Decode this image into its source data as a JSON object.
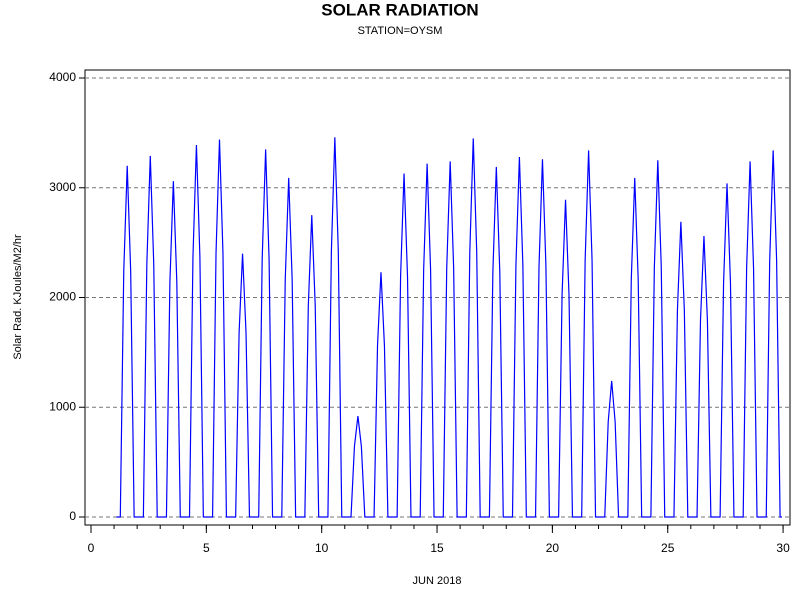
{
  "chart_data": {
    "type": "line",
    "title": "SOLAR RADIATION",
    "subtitle": "STATION=OYSM",
    "x_label": "JUN 2018",
    "y_label": "Solar Rad. KJoules/M2/hr",
    "xlim": [
      -0.26,
      30.3
    ],
    "ylim": [
      -73,
      4073
    ],
    "xticks": [
      0,
      5,
      10,
      15,
      20,
      25,
      30
    ],
    "xminor_ticks": [
      0,
      1,
      2,
      3,
      4,
      5,
      6,
      7,
      8,
      9,
      10,
      11,
      12,
      13,
      14,
      15,
      16,
      17,
      18,
      19,
      20,
      21,
      22,
      23,
      24,
      25,
      26,
      27,
      28,
      29,
      30
    ],
    "yticks": [
      0,
      1000,
      2000,
      3000,
      4000
    ],
    "grid": true,
    "series": [
      {
        "name": "Solar Rad.",
        "color": "#0000ff",
        "x": [
          1.1,
          1.27,
          1.42,
          1.57,
          1.72,
          1.87,
          2.27,
          2.42,
          2.57,
          2.72,
          2.87,
          3.27,
          3.42,
          3.57,
          3.72,
          3.87,
          4.27,
          4.42,
          4.57,
          4.72,
          4.87,
          5.27,
          5.42,
          5.57,
          5.72,
          5.87,
          6.27,
          6.42,
          6.57,
          6.72,
          6.87,
          7.27,
          7.42,
          7.57,
          7.72,
          7.87,
          8.27,
          8.42,
          8.57,
          8.72,
          8.87,
          9.27,
          9.42,
          9.57,
          9.72,
          9.87,
          10.27,
          10.42,
          10.57,
          10.72,
          10.87,
          11.27,
          11.42,
          11.57,
          11.72,
          11.87,
          12.27,
          12.42,
          12.57,
          12.72,
          12.87,
          13.27,
          13.42,
          13.57,
          13.72,
          13.87,
          14.27,
          14.42,
          14.57,
          14.72,
          14.87,
          15.27,
          15.42,
          15.57,
          15.72,
          15.87,
          16.27,
          16.42,
          16.57,
          16.72,
          16.87,
          17.27,
          17.42,
          17.57,
          17.72,
          17.87,
          18.27,
          18.42,
          18.57,
          18.72,
          18.87,
          19.27,
          19.42,
          19.57,
          19.72,
          19.87,
          20.27,
          20.42,
          20.57,
          20.72,
          20.87,
          21.27,
          21.42,
          21.57,
          21.72,
          21.87,
          22.27,
          22.42,
          22.57,
          22.72,
          22.87,
          23.27,
          23.42,
          23.57,
          23.72,
          23.87,
          24.27,
          24.42,
          24.57,
          24.72,
          24.87,
          25.27,
          25.42,
          25.57,
          25.72,
          25.87,
          26.27,
          26.42,
          26.57,
          26.72,
          26.87,
          27.27,
          27.42,
          27.57,
          27.72,
          27.87,
          28.27,
          28.42,
          28.57,
          28.72,
          28.87,
          29.27,
          29.42,
          29.57,
          29.72,
          29.87,
          29.95
        ],
        "values": [
          0,
          0,
          2240,
          3200,
          2240,
          0,
          0,
          2303,
          3290,
          2303,
          0,
          0,
          2142,
          3060,
          2142,
          0,
          0,
          2373,
          3390,
          2373,
          0,
          0,
          2408,
          3440,
          2408,
          0,
          0,
          1680,
          2400,
          1680,
          0,
          0,
          2345,
          3350,
          2345,
          0,
          0,
          2163,
          3090,
          2163,
          0,
          0,
          1925,
          2750,
          1925,
          0,
          0,
          2422,
          3460,
          2422,
          0,
          0,
          644,
          920,
          644,
          0,
          0,
          1561,
          2230,
          1561,
          0,
          0,
          2191,
          3130,
          2191,
          0,
          0,
          2254,
          3220,
          2254,
          0,
          0,
          2268,
          3240,
          2268,
          0,
          0,
          2415,
          3450,
          2415,
          0,
          0,
          2233,
          3190,
          2233,
          0,
          0,
          2296,
          3280,
          2296,
          0,
          0,
          2282,
          3260,
          2282,
          0,
          0,
          2023,
          2890,
          2023,
          0,
          0,
          2338,
          3340,
          2338,
          0,
          0,
          868,
          1240,
          868,
          0,
          0,
          2163,
          3090,
          2163,
          0,
          0,
          2275,
          3250,
          2275,
          0,
          0,
          1883,
          2690,
          1883,
          0,
          0,
          1792,
          2560,
          1792,
          0,
          0,
          2128,
          3040,
          2128,
          0,
          0,
          2268,
          3240,
          2268,
          0,
          0,
          2338,
          3340,
          2338,
          0,
          0
        ]
      }
    ]
  }
}
